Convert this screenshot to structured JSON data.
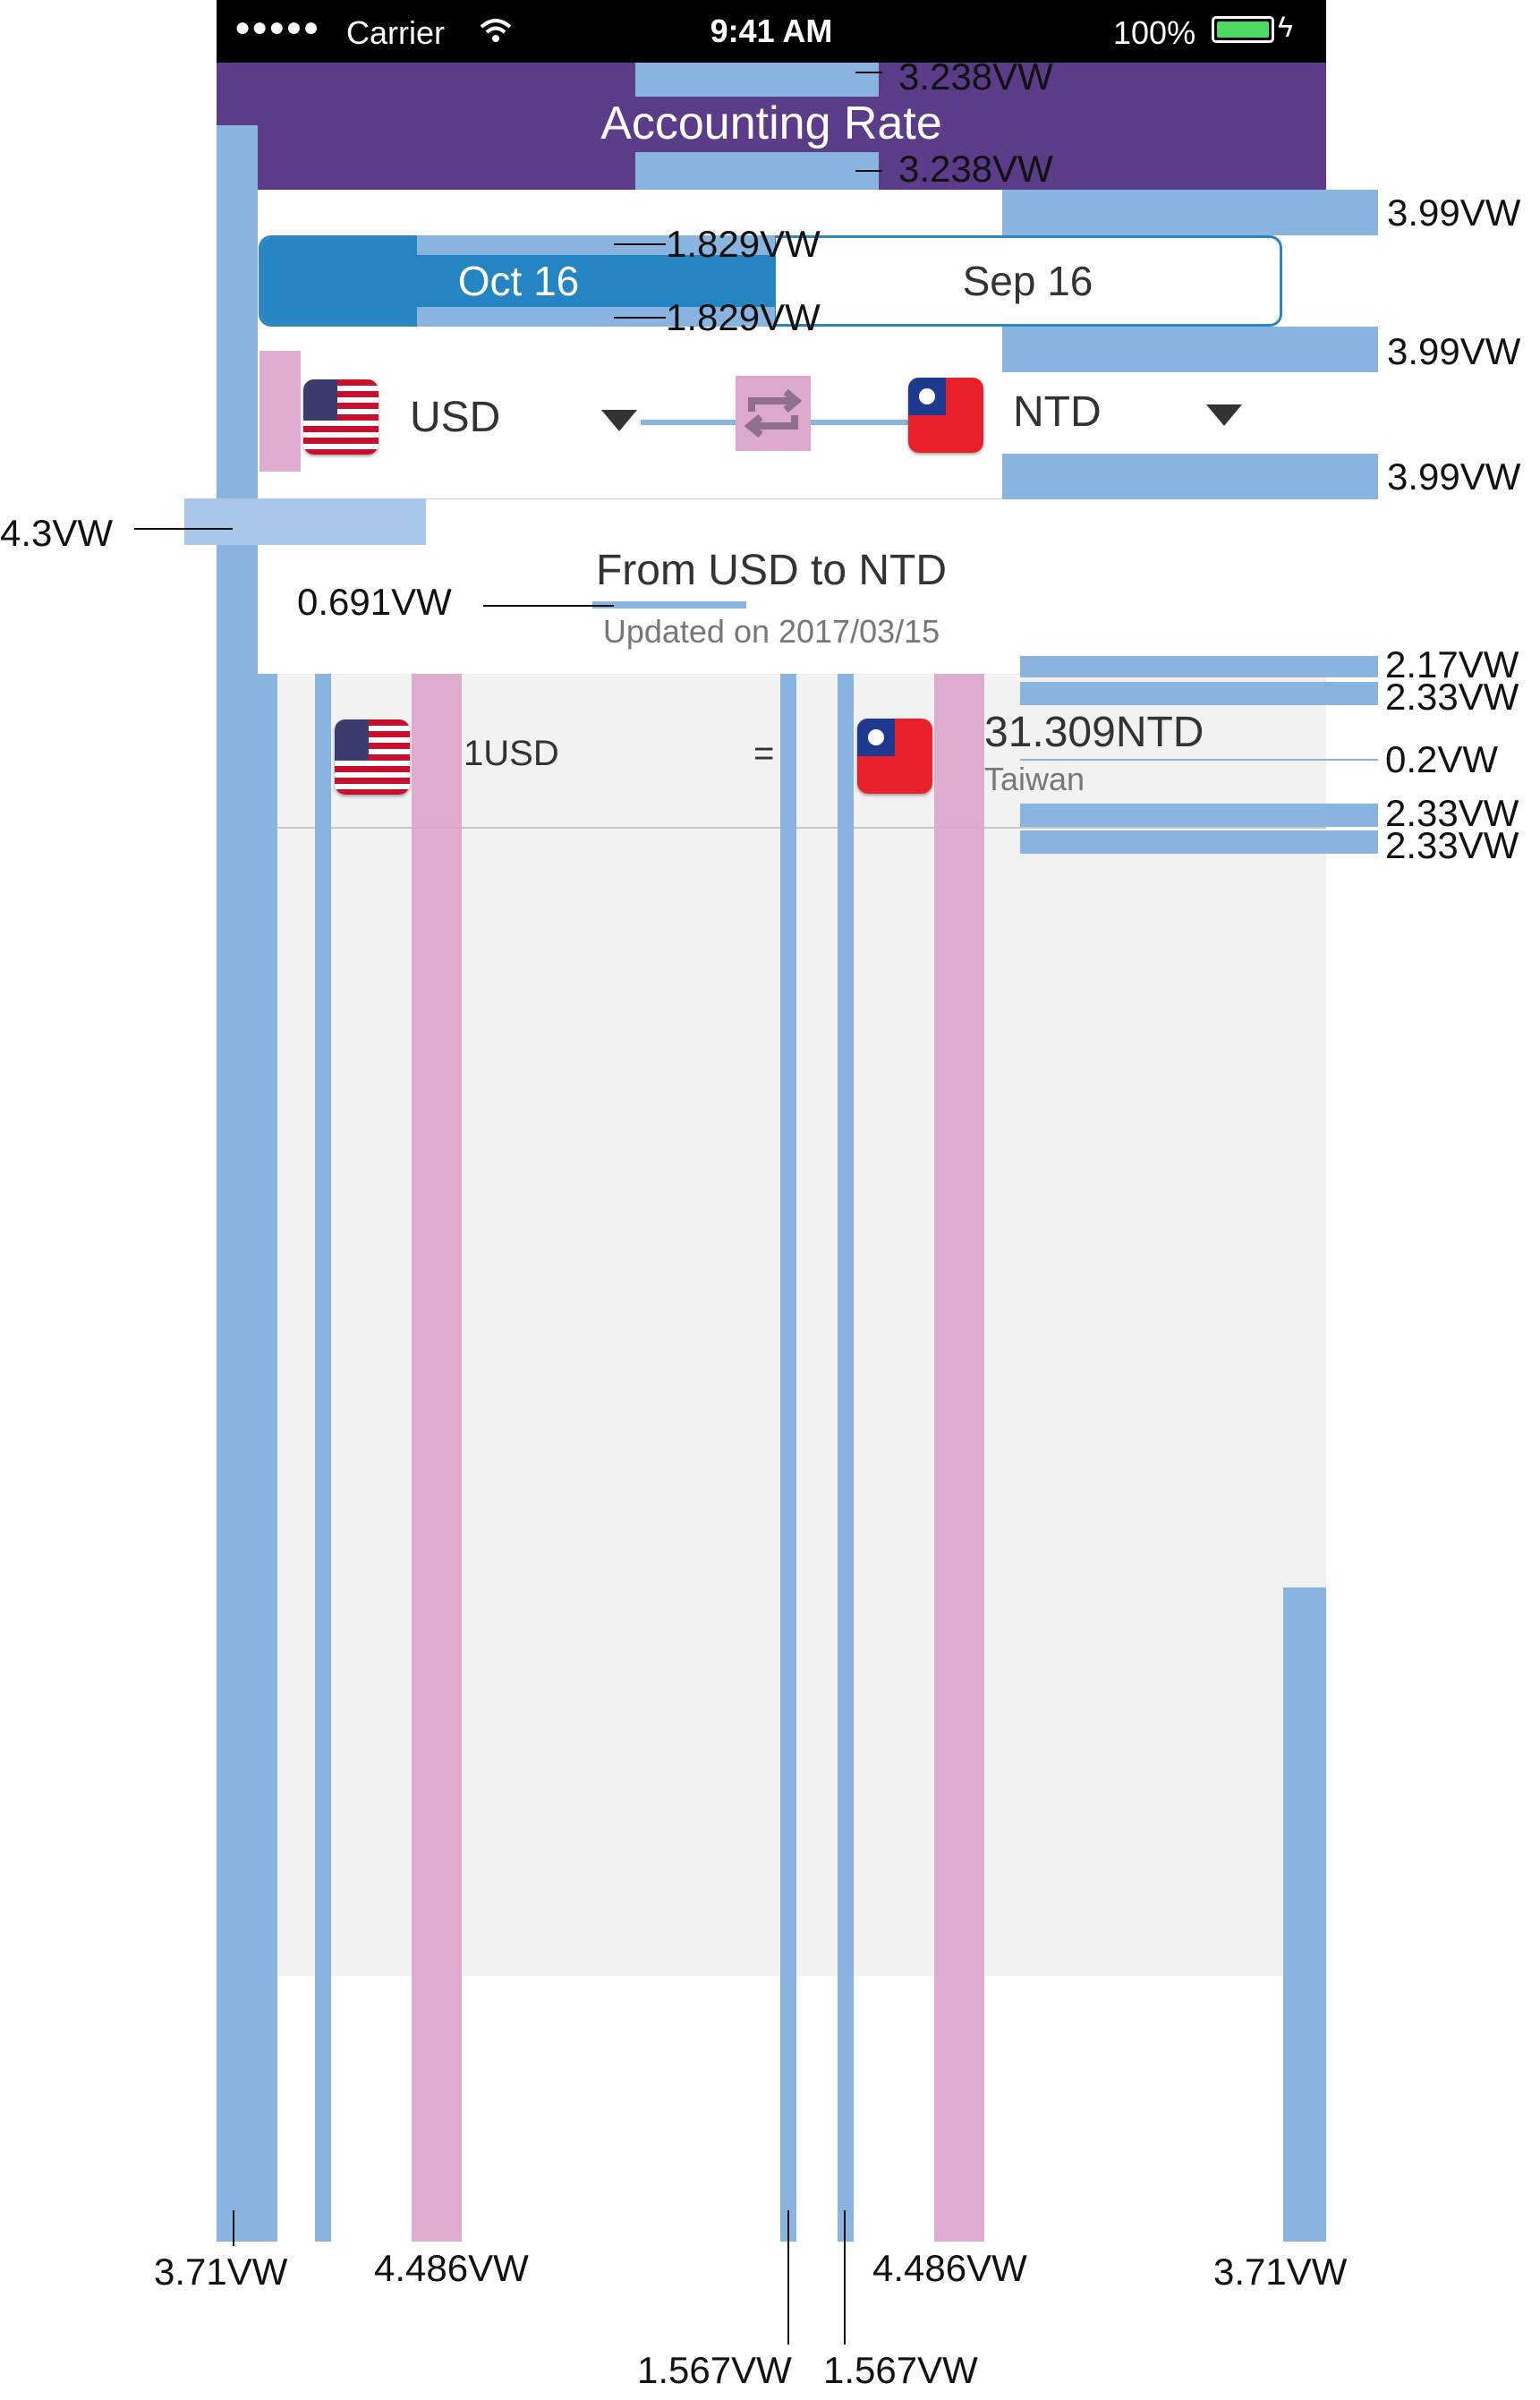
{
  "status": {
    "carrier": "Carrier",
    "time": "9:41 AM",
    "battery": "100%"
  },
  "nav": {
    "title": "Accounting Rate"
  },
  "segment": {
    "active": "Oct 16",
    "inactive": "Sep 16"
  },
  "currency": {
    "from": "USD",
    "to": "NTD"
  },
  "header": {
    "title": "From USD to NTD",
    "updated": "Updated on 2017/03/15"
  },
  "rate": {
    "amount": "1USD",
    "equals": "=",
    "result": "31.309NTD",
    "country": "Taiwan"
  },
  "annotations": {
    "nav_top": "3.238VW",
    "nav_bottom": "3.238VW",
    "seg_top": "1.829VW",
    "seg_bottom": "1.829VW",
    "right_1": "3.99VW",
    "right_2": "3.99VW",
    "right_3": "3.99VW",
    "left_pad": "4.3VW",
    "header_gap": "0.691VW",
    "row_1": "2.17VW",
    "row_2": "2.33VW",
    "row_mid": "0.2VW",
    "row_3": "2.33VW",
    "row_4": "2.33VW",
    "bottom_left": "3.71VW",
    "bottom_flag_left": "4.486VW",
    "bottom_gap_1": "1.567VW",
    "bottom_gap_2": "1.567VW",
    "bottom_flag_right": "4.486VW",
    "bottom_right": "3.71VW"
  },
  "colors": {
    "nav": "#5a3c89",
    "segment": "#2585c3",
    "guide_blue": "#8ab4e0",
    "guide_pink": "#dca8cb",
    "list_bg": "#f2f2f2"
  },
  "icons": [
    "wifi-icon",
    "battery-icon",
    "us-flag-icon",
    "tw-flag-icon",
    "swap-icon",
    "chevron-down-icon"
  ]
}
